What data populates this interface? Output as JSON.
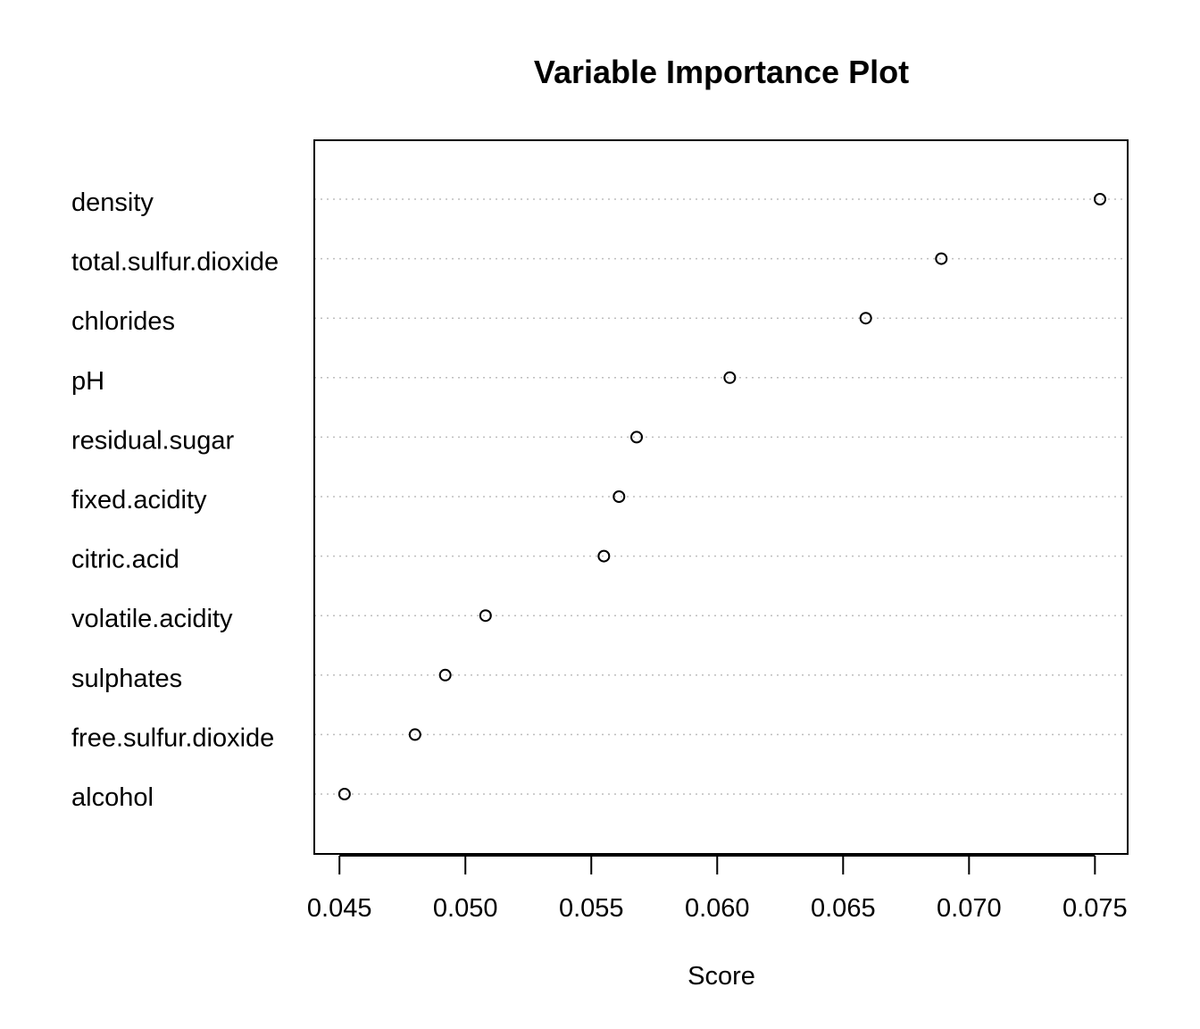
{
  "chart_data": {
    "type": "scatter",
    "title": "Variable Importance Plot",
    "xlabel": "Score",
    "ylabel": "",
    "categories": [
      "density",
      "total.sulfur.dioxide",
      "chlorides",
      "pH",
      "residual.sugar",
      "fixed.acidity",
      "citric.acid",
      "volatile.acidity",
      "sulphates",
      "free.sulfur.dioxide",
      "alcohol"
    ],
    "values": [
      0.0752,
      0.0689,
      0.0659,
      0.0605,
      0.0568,
      0.0561,
      0.0555,
      0.0508,
      0.0492,
      0.048,
      0.0452
    ],
    "xlim": [
      0.044,
      0.0763
    ],
    "xticks": [
      0.045,
      0.05,
      0.055,
      0.06,
      0.065,
      0.07,
      0.075
    ],
    "xtick_labels": [
      "0.045",
      "0.050",
      "0.055",
      "0.060",
      "0.065",
      "0.070",
      "0.075"
    ],
    "grid": "horizontal dotted",
    "colors": {
      "point_stroke": "#000000",
      "grid": "#bebebe",
      "axis": "#000000"
    }
  }
}
